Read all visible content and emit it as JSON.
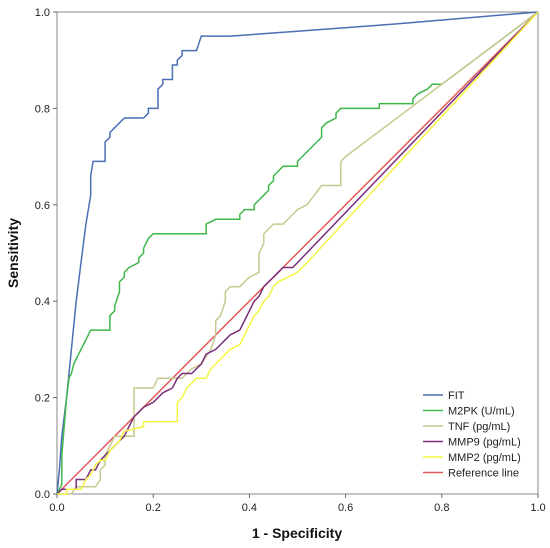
{
  "chart_data": {
    "type": "line",
    "title": "",
    "xlabel": "1 - Specificity",
    "ylabel": "Sensitivity",
    "xlim": [
      0,
      1
    ],
    "ylim": [
      0,
      1
    ],
    "xticks": [
      "0.0",
      "0.2",
      "0.4",
      "0.6",
      "0.8",
      "1.0"
    ],
    "yticks": [
      "0.0",
      "0.2",
      "0.4",
      "0.6",
      "0.8",
      "1.0"
    ],
    "grid": false,
    "legend_position": "bottom-right",
    "series": [
      {
        "name": "FIT",
        "color": "#4a6fb5",
        "points": [
          [
            0,
            0
          ],
          [
            0.005,
            0.05
          ],
          [
            0.01,
            0.12
          ],
          [
            0.02,
            0.2
          ],
          [
            0.03,
            0.3
          ],
          [
            0.04,
            0.4
          ],
          [
            0.05,
            0.48
          ],
          [
            0.06,
            0.56
          ],
          [
            0.07,
            0.62
          ],
          [
            0.07,
            0.66
          ],
          [
            0.075,
            0.69
          ],
          [
            0.1,
            0.69
          ],
          [
            0.1,
            0.73
          ],
          [
            0.11,
            0.74
          ],
          [
            0.11,
            0.75
          ],
          [
            0.12,
            0.76
          ],
          [
            0.13,
            0.77
          ],
          [
            0.14,
            0.78
          ],
          [
            0.18,
            0.78
          ],
          [
            0.19,
            0.79
          ],
          [
            0.19,
            0.8
          ],
          [
            0.21,
            0.8
          ],
          [
            0.21,
            0.84
          ],
          [
            0.22,
            0.85
          ],
          [
            0.22,
            0.86
          ],
          [
            0.24,
            0.86
          ],
          [
            0.24,
            0.89
          ],
          [
            0.25,
            0.89
          ],
          [
            0.25,
            0.9
          ],
          [
            0.26,
            0.91
          ],
          [
            0.26,
            0.92
          ],
          [
            0.29,
            0.92
          ],
          [
            0.3,
            0.95
          ],
          [
            0.36,
            0.95
          ],
          [
            0.5,
            0.96
          ],
          [
            0.7,
            0.975
          ],
          [
            1,
            1
          ]
        ]
      },
      {
        "name": "M2PK (U/mL)",
        "color": "#3fb84a",
        "points": [
          [
            0,
            0
          ],
          [
            0.01,
            0.02
          ],
          [
            0.01,
            0.08
          ],
          [
            0.015,
            0.14
          ],
          [
            0.02,
            0.2
          ],
          [
            0.025,
            0.24
          ],
          [
            0.03,
            0.25
          ],
          [
            0.035,
            0.27
          ],
          [
            0.04,
            0.28
          ],
          [
            0.045,
            0.29
          ],
          [
            0.05,
            0.3
          ],
          [
            0.055,
            0.31
          ],
          [
            0.06,
            0.32
          ],
          [
            0.065,
            0.33
          ],
          [
            0.07,
            0.34
          ],
          [
            0.11,
            0.34
          ],
          [
            0.11,
            0.37
          ],
          [
            0.12,
            0.38
          ],
          [
            0.12,
            0.39
          ],
          [
            0.13,
            0.42
          ],
          [
            0.13,
            0.44
          ],
          [
            0.14,
            0.45
          ],
          [
            0.14,
            0.46
          ],
          [
            0.15,
            0.47
          ],
          [
            0.17,
            0.48
          ],
          [
            0.17,
            0.49
          ],
          [
            0.18,
            0.5
          ],
          [
            0.18,
            0.51
          ],
          [
            0.19,
            0.53
          ],
          [
            0.2,
            0.54
          ],
          [
            0.31,
            0.54
          ],
          [
            0.31,
            0.56
          ],
          [
            0.33,
            0.57
          ],
          [
            0.38,
            0.57
          ],
          [
            0.38,
            0.58
          ],
          [
            0.39,
            0.59
          ],
          [
            0.41,
            0.59
          ],
          [
            0.41,
            0.6
          ],
          [
            0.42,
            0.61
          ],
          [
            0.43,
            0.62
          ],
          [
            0.44,
            0.63
          ],
          [
            0.44,
            0.64
          ],
          [
            0.45,
            0.65
          ],
          [
            0.45,
            0.66
          ],
          [
            0.46,
            0.67
          ],
          [
            0.47,
            0.68
          ],
          [
            0.5,
            0.68
          ],
          [
            0.5,
            0.69
          ],
          [
            0.51,
            0.7
          ],
          [
            0.52,
            0.71
          ],
          [
            0.53,
            0.72
          ],
          [
            0.54,
            0.73
          ],
          [
            0.55,
            0.74
          ],
          [
            0.55,
            0.76
          ],
          [
            0.56,
            0.77
          ],
          [
            0.58,
            0.78
          ],
          [
            0.58,
            0.79
          ],
          [
            0.59,
            0.8
          ],
          [
            0.67,
            0.8
          ],
          [
            0.67,
            0.81
          ],
          [
            0.74,
            0.81
          ],
          [
            0.74,
            0.82
          ],
          [
            0.75,
            0.83
          ],
          [
            0.77,
            0.84
          ],
          [
            0.78,
            0.85
          ],
          [
            0.8,
            0.85
          ],
          [
            1,
            1
          ]
        ]
      },
      {
        "name": "TNF (pg/mL)",
        "color": "#c8c890",
        "points": [
          [
            0,
            0
          ],
          [
            0.03,
            0
          ],
          [
            0.04,
            0.015
          ],
          [
            0.08,
            0.015
          ],
          [
            0.09,
            0.03
          ],
          [
            0.09,
            0.05
          ],
          [
            0.1,
            0.06
          ],
          [
            0.1,
            0.08
          ],
          [
            0.11,
            0.1
          ],
          [
            0.12,
            0.12
          ],
          [
            0.16,
            0.12
          ],
          [
            0.16,
            0.22
          ],
          [
            0.2,
            0.22
          ],
          [
            0.21,
            0.24
          ],
          [
            0.26,
            0.24
          ],
          [
            0.28,
            0.26
          ],
          [
            0.3,
            0.27
          ],
          [
            0.32,
            0.3
          ],
          [
            0.33,
            0.33
          ],
          [
            0.33,
            0.36
          ],
          [
            0.34,
            0.37
          ],
          [
            0.35,
            0.4
          ],
          [
            0.35,
            0.42
          ],
          [
            0.36,
            0.43
          ],
          [
            0.38,
            0.43
          ],
          [
            0.4,
            0.45
          ],
          [
            0.42,
            0.46
          ],
          [
            0.42,
            0.5
          ],
          [
            0.43,
            0.52
          ],
          [
            0.43,
            0.54
          ],
          [
            0.44,
            0.55
          ],
          [
            0.45,
            0.56
          ],
          [
            0.47,
            0.56
          ],
          [
            0.5,
            0.59
          ],
          [
            0.52,
            0.6
          ],
          [
            0.55,
            0.64
          ],
          [
            0.59,
            0.64
          ],
          [
            0.59,
            0.69
          ],
          [
            0.6,
            0.7
          ],
          [
            1,
            1
          ]
        ]
      },
      {
        "name": "MMP9 (pg/mL)",
        "color": "#7b2d7b",
        "points": [
          [
            0,
            0
          ],
          [
            0.01,
            0.01
          ],
          [
            0.04,
            0.01
          ],
          [
            0.04,
            0.03
          ],
          [
            0.06,
            0.03
          ],
          [
            0.07,
            0.05
          ],
          [
            0.08,
            0.05
          ],
          [
            0.09,
            0.07
          ],
          [
            0.1,
            0.08
          ],
          [
            0.11,
            0.09
          ],
          [
            0.12,
            0.1
          ],
          [
            0.13,
            0.11
          ],
          [
            0.14,
            0.12
          ],
          [
            0.15,
            0.14
          ],
          [
            0.16,
            0.16
          ],
          [
            0.17,
            0.17
          ],
          [
            0.18,
            0.18
          ],
          [
            0.2,
            0.19
          ],
          [
            0.21,
            0.2
          ],
          [
            0.22,
            0.21
          ],
          [
            0.24,
            0.22
          ],
          [
            0.25,
            0.24
          ],
          [
            0.26,
            0.25
          ],
          [
            0.28,
            0.25
          ],
          [
            0.29,
            0.26
          ],
          [
            0.3,
            0.27
          ],
          [
            0.31,
            0.29
          ],
          [
            0.33,
            0.3
          ],
          [
            0.34,
            0.31
          ],
          [
            0.35,
            0.32
          ],
          [
            0.36,
            0.33
          ],
          [
            0.38,
            0.34
          ],
          [
            0.39,
            0.36
          ],
          [
            0.4,
            0.38
          ],
          [
            0.41,
            0.4
          ],
          [
            0.42,
            0.41
          ],
          [
            0.43,
            0.43
          ],
          [
            0.44,
            0.44
          ],
          [
            0.45,
            0.45
          ],
          [
            0.46,
            0.46
          ],
          [
            0.47,
            0.47
          ],
          [
            0.49,
            0.47
          ],
          [
            0.5,
            0.48
          ],
          [
            1,
            1
          ]
        ]
      },
      {
        "name": "MMP2 (pg/mL)",
        "color": "#f5f542",
        "points": [
          [
            0,
            0
          ],
          [
            0.02,
            0
          ],
          [
            0.02,
            0.01
          ],
          [
            0.05,
            0.01
          ],
          [
            0.06,
            0.03
          ],
          [
            0.07,
            0.04
          ],
          [
            0.08,
            0.06
          ],
          [
            0.09,
            0.07
          ],
          [
            0.1,
            0.07
          ],
          [
            0.11,
            0.09
          ],
          [
            0.12,
            0.1
          ],
          [
            0.13,
            0.11
          ],
          [
            0.14,
            0.13
          ],
          [
            0.18,
            0.14
          ],
          [
            0.18,
            0.15
          ],
          [
            0.25,
            0.15
          ],
          [
            0.25,
            0.19
          ],
          [
            0.26,
            0.2
          ],
          [
            0.27,
            0.22
          ],
          [
            0.28,
            0.23
          ],
          [
            0.29,
            0.24
          ],
          [
            0.31,
            0.24
          ],
          [
            0.32,
            0.26
          ],
          [
            0.33,
            0.27
          ],
          [
            0.34,
            0.28
          ],
          [
            0.35,
            0.29
          ],
          [
            0.36,
            0.3
          ],
          [
            0.38,
            0.31
          ],
          [
            0.39,
            0.33
          ],
          [
            0.4,
            0.35
          ],
          [
            0.41,
            0.37
          ],
          [
            0.42,
            0.38
          ],
          [
            0.43,
            0.4
          ],
          [
            0.44,
            0.41
          ],
          [
            0.45,
            0.43
          ],
          [
            0.46,
            0.44
          ],
          [
            0.48,
            0.45
          ],
          [
            0.5,
            0.46
          ],
          [
            0.52,
            0.48
          ],
          [
            1,
            1
          ]
        ]
      },
      {
        "name": "Reference line",
        "color": "#e05a5a",
        "points": [
          [
            0,
            0
          ],
          [
            1,
            1
          ]
        ]
      }
    ]
  }
}
